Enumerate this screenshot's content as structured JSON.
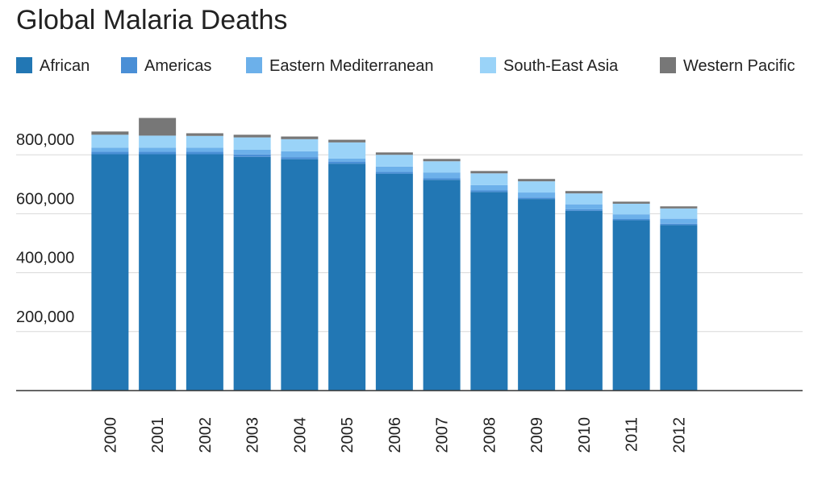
{
  "chart_data": {
    "type": "stacked-bar",
    "title": "Global Malaria Deaths",
    "categories": [
      "2000",
      "2001",
      "2002",
      "2003",
      "2004",
      "2005",
      "2006",
      "2007",
      "2008",
      "2009",
      "2010",
      "2011",
      "2012"
    ],
    "series": [
      {
        "name": "African",
        "color": "#2277b4",
        "values": [
          802000,
          802000,
          802000,
          793000,
          785000,
          770000,
          736000,
          715000,
          674000,
          650000,
          610000,
          578000,
          562000
        ]
      },
      {
        "name": "Americas",
        "color": "#4a8fd6",
        "values": [
          8000,
          8000,
          8000,
          8000,
          7000,
          7000,
          6000,
          5000,
          5000,
          5000,
          5000,
          4000,
          4000
        ]
      },
      {
        "name": "Eastern Mediterranean",
        "color": "#6cb0ea",
        "values": [
          14000,
          14000,
          14000,
          16000,
          20000,
          10000,
          18000,
          20000,
          18000,
          17000,
          17000,
          16000,
          17000
        ]
      },
      {
        "name": "South-East Asia",
        "color": "#9ad3f8",
        "values": [
          44000,
          41000,
          40000,
          42000,
          41000,
          55000,
          40000,
          38000,
          40000,
          38000,
          37000,
          36000,
          35000
        ]
      },
      {
        "name": "Western Pacific",
        "color": "#777777",
        "values": [
          11000,
          60000,
          9000,
          9000,
          9000,
          9000,
          8000,
          8000,
          8000,
          8000,
          8000,
          7000,
          7000
        ]
      }
    ],
    "ylim": [
      0,
      1000000
    ],
    "yticks": [
      {
        "value": 200000,
        "label": "200,000"
      },
      {
        "value": 400000,
        "label": "400,000"
      },
      {
        "value": 600000,
        "label": "600,000"
      },
      {
        "value": 800000,
        "label": "800,000"
      }
    ],
    "grid": true,
    "legend": "top"
  }
}
